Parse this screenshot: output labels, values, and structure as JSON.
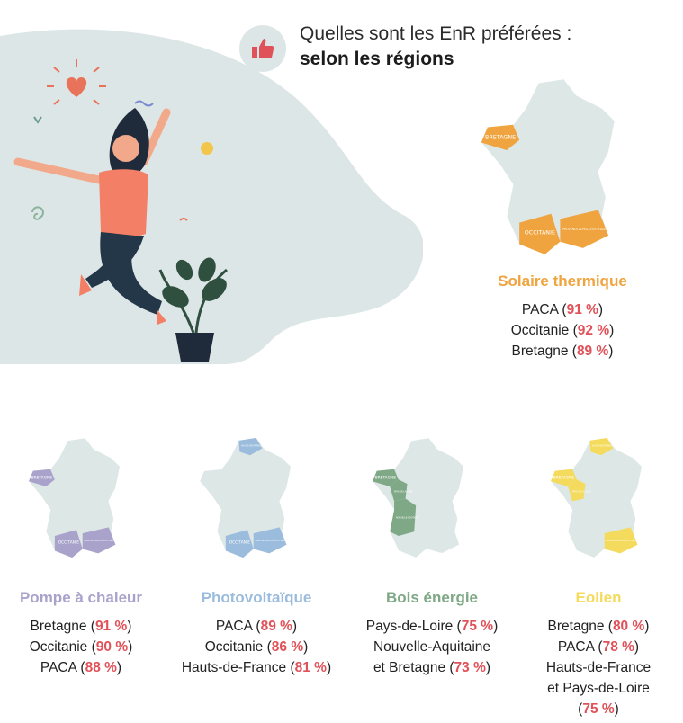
{
  "header": {
    "title_line1": "Quelles sont les EnR préférées :",
    "title_line2": "selon les régions",
    "icon": "thumbs-up-icon"
  },
  "colors": {
    "blob": "#dde6e6",
    "map_base": "#dce7e6",
    "solaire": "#efa440",
    "pompe": "#a9a3cc",
    "photo": "#9bbcdd",
    "bois": "#7fa986",
    "eolien": "#f4db5e",
    "percent": "#e05259"
  },
  "cards": [
    {
      "id": "solaire",
      "title": "Solaire thermique",
      "map_labels": [
        "BRETAGNE",
        "OCCITANIE",
        "PROVENCE-ALPES-CÔTE D'AZUR"
      ],
      "items": [
        {
          "pre": "PACA (",
          "pct": "91 %",
          "post": ")"
        },
        {
          "pre": "Occitanie (",
          "pct": "92 %",
          "post": ")"
        },
        {
          "pre": "Bretagne (",
          "pct": "89 %",
          "post": ")"
        }
      ]
    },
    {
      "id": "pompe",
      "title": "Pompe à chaleur",
      "map_labels": [
        "BRETAGNE",
        "OCCITANIE",
        "PROVENCE-ALPES-CÔTE D'AZUR"
      ],
      "items": [
        {
          "pre": "Bretagne (",
          "pct": "91 %",
          "post": ")"
        },
        {
          "pre": "Occitanie (",
          "pct": "90 %",
          "post": ")"
        },
        {
          "pre": "PACA (",
          "pct": "88 %",
          "post": ")"
        }
      ]
    },
    {
      "id": "photo",
      "title": "Photovoltaïque",
      "map_labels": [
        "HAUTS-DE-FRANCE",
        "OCCITANIE",
        "PROVENCE-ALPES-CÔTE D'AZUR"
      ],
      "items": [
        {
          "pre": "PACA (",
          "pct": "89 %",
          "post": ")"
        },
        {
          "pre": "Occitanie (",
          "pct": "86 %",
          "post": ")"
        },
        {
          "pre": "Hauts-de-France (",
          "pct": "81 %",
          "post": ")"
        }
      ]
    },
    {
      "id": "bois",
      "title": "Bois énergie",
      "map_labels": [
        "BRETAGNE",
        "PAYS-DE-LA-LOIRE",
        "NOUVELLE-AQUITAINE"
      ],
      "items": [
        {
          "pre": "Pays-de-Loire (",
          "pct": "75 %",
          "post": ")"
        },
        {
          "pre": "Nouvelle-Aquitaine",
          "pct": "",
          "post": ""
        },
        {
          "pre": "et Bretagne (",
          "pct": "73 %",
          "post": ")"
        }
      ]
    },
    {
      "id": "eolien",
      "title": "Eolien",
      "map_labels": [
        "BRETAGNE",
        "PAYS-DE-LA-LOIRE",
        "HAUTS-DE-FRANCE",
        "PROVENCE-ALPES-CÔTE D'AZUR"
      ],
      "items": [
        {
          "pre": "Bretagne (",
          "pct": "80 %",
          "post": ")"
        },
        {
          "pre": "PACA (",
          "pct": "78 %",
          "post": ")"
        },
        {
          "pre": "Hauts-de-France",
          "pct": "",
          "post": ""
        },
        {
          "pre": "et Pays-de-Loire",
          "pct": "",
          "post": ""
        },
        {
          "pre": "(",
          "pct": "75 %",
          "post": ")"
        }
      ]
    }
  ]
}
